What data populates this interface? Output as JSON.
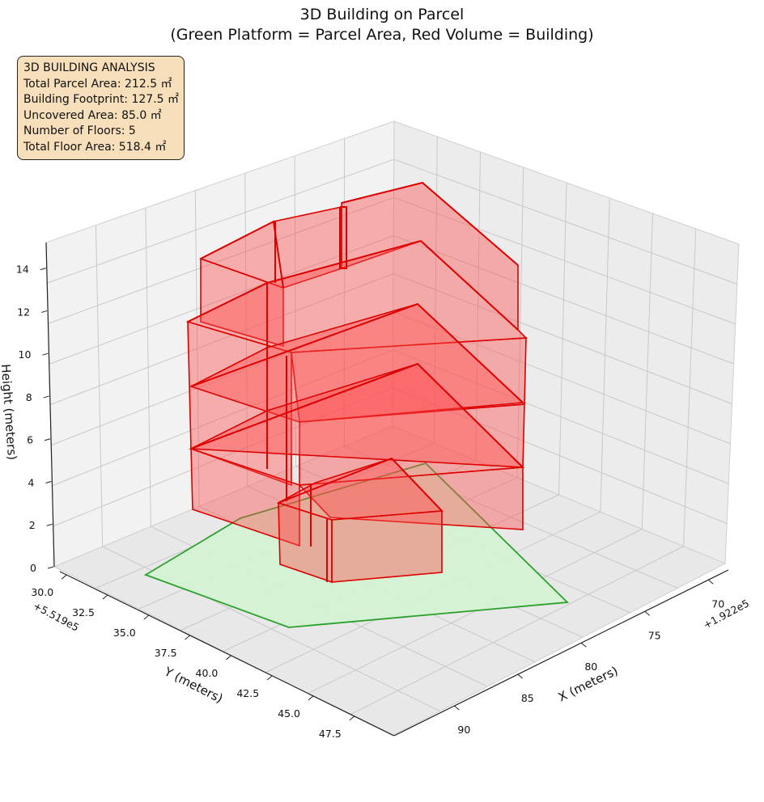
{
  "title_line1": "3D Building on Parcel",
  "title_line2": "(Green Platform = Parcel Area, Red Volume = Building)",
  "info": {
    "heading": "3D BUILDING ANALYSIS",
    "total_parcel_area": "Total Parcel Area: 212.5 ㎡",
    "building_footprint": "Building Footprint: 127.5 ㎡",
    "uncovered_area": "Uncovered Area: 85.0 ㎡",
    "number_of_floors": "Number of Floors: 5",
    "total_floor_area": "Total Floor Area: 518.4 ㎡"
  },
  "chart_data": {
    "type": "3d-polygons",
    "xlabel": "X (meters)",
    "ylabel": "Y (meters)",
    "zlabel": "Height (meters)",
    "x_offset": "+1.922e5",
    "y_offset": "+5.519e5",
    "x_ticks": [
      "70",
      "75",
      "80",
      "85",
      "90"
    ],
    "y_ticks": [
      "30.0",
      "32.5",
      "35.0",
      "37.5",
      "40.0",
      "42.5",
      "45.0",
      "47.5"
    ],
    "z_ticks": [
      "0",
      "2",
      "4",
      "6",
      "8",
      "10",
      "12",
      "14"
    ],
    "colors": {
      "parcel_fill": "#d4f2d4",
      "parcel_edge": "#2ca02c",
      "building_fill": "#ff4d4d",
      "building_edge": "#dd0000"
    },
    "parcel_area_m2": 212.5,
    "building_footprint_m2": 127.5,
    "floors": 5,
    "total_floor_area_m2": 518.4,
    "grid": true
  }
}
